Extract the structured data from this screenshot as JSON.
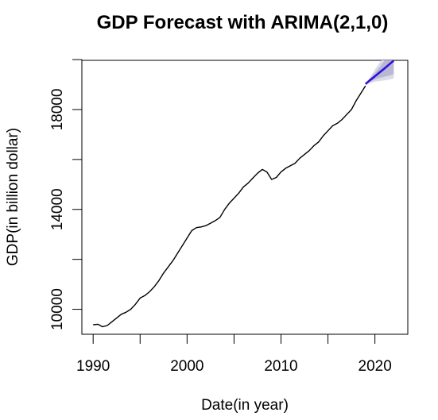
{
  "chart_data": {
    "type": "line",
    "title": "GDP Forecast with ARIMA(2,1,0)",
    "xlabel": "Date(in year)",
    "ylabel": "GDP(in billion dollar)",
    "xlim": [
      1988.8,
      2023.5
    ],
    "ylim": [
      9000,
      19970
    ],
    "x_ticks": [
      1990,
      1995,
      2000,
      2005,
      2010,
      2015,
      2020
    ],
    "x_tick_labels": [
      "1990",
      "",
      "2000",
      "",
      "2010",
      "",
      "2020"
    ],
    "y_ticks": [
      10000,
      12000,
      14000,
      16000,
      18000,
      20000
    ],
    "y_tick_labels": [
      "10000",
      "",
      "14000",
      "",
      "18000",
      ""
    ],
    "grid": false,
    "colors": {
      "history": "#000000",
      "forecast": "#2f10e0",
      "band_95": "#dcdce8",
      "band_80": "#b8b8d4"
    },
    "series": [
      {
        "x": [
          1990.0,
          1990.5,
          1991.0,
          1991.5,
          1992.0,
          1992.5,
          1993.0,
          1993.5,
          1994.0,
          1994.5,
          1995.0,
          1995.5,
          1996.0,
          1996.5,
          1997.0,
          1997.5,
          1998.0,
          1998.5,
          1999.0,
          1999.5,
          2000.0,
          2000.5,
          2001.0,
          2001.5,
          2002.0,
          2002.5,
          2003.0,
          2003.5,
          2004.0,
          2004.5,
          2005.0,
          2005.5,
          2006.0,
          2006.5,
          2007.0,
          2007.5,
          2008.0,
          2008.5,
          2009.0,
          2009.5,
          2010.0,
          2010.5,
          2011.0,
          2011.5,
          2012.0,
          2012.5,
          2013.0,
          2013.5,
          2014.0,
          2014.5,
          2015.0,
          2015.5,
          2016.0,
          2016.5,
          2017.0,
          2017.5,
          2018.0,
          2018.5,
          2019.0
        ],
        "values": [
          9380,
          9400,
          9300,
          9350,
          9500,
          9650,
          9800,
          9880,
          10000,
          10200,
          10450,
          10550,
          10700,
          10900,
          11150,
          11450,
          11700,
          11950,
          12250,
          12550,
          12850,
          13150,
          13270,
          13300,
          13350,
          13450,
          13550,
          13680,
          14000,
          14250,
          14450,
          14650,
          14900,
          15050,
          15250,
          15450,
          15600,
          15500,
          15200,
          15280,
          15500,
          15650,
          15750,
          15850,
          16050,
          16200,
          16350,
          16550,
          16700,
          16950,
          17150,
          17350,
          17450,
          17600,
          17800,
          18000,
          18350,
          18650,
          18950
        ]
      },
      {
        "x": [
          2019.0,
          2019.5,
          2020.0,
          2020.5,
          2021.0,
          2021.5,
          2022.0
        ],
        "values": [
          19020,
          19180,
          19330,
          19490,
          19640,
          19800,
          19960
        ],
        "lo80": [
          19020,
          19120,
          19200,
          19260,
          19310,
          19360,
          19410
        ],
        "hi80": [
          19020,
          19250,
          19460,
          19700,
          19950,
          20200,
          20480
        ],
        "lo95": [
          19020,
          19060,
          19110,
          19140,
          19170,
          19200,
          19240
        ],
        "hi95": [
          19020,
          19300,
          19600,
          19880,
          20150,
          20450,
          20700
        ]
      }
    ]
  }
}
